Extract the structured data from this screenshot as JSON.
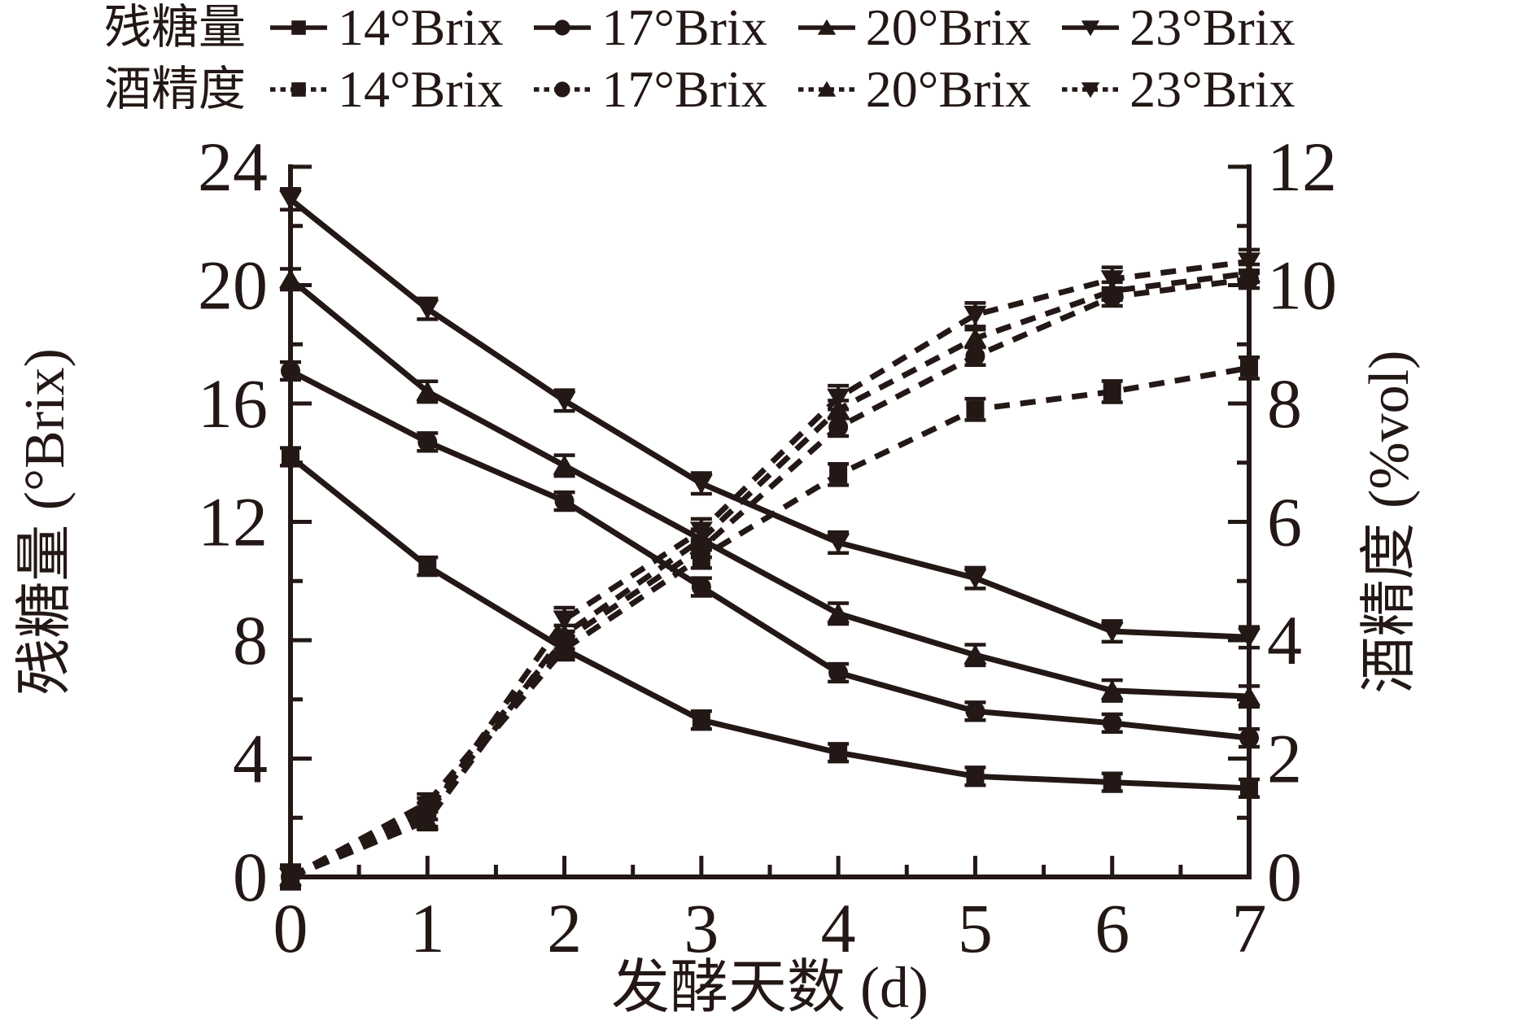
{
  "figure": {
    "background": "#ffffff",
    "ink_color": "#231815"
  },
  "legend": {
    "rows": [
      {
        "group_label": "残糖量",
        "line_style": "solid",
        "entries": [
          {
            "label": "14°Brix",
            "marker": "square"
          },
          {
            "label": "17°Brix",
            "marker": "circle"
          },
          {
            "label": "20°Brix",
            "marker": "triangle-up"
          },
          {
            "label": "23°Brix",
            "marker": "triangle-down"
          }
        ]
      },
      {
        "group_label": "酒精度",
        "line_style": "dashed",
        "entries": [
          {
            "label": "14°Brix",
            "marker": "square"
          },
          {
            "label": "17°Brix",
            "marker": "circle"
          },
          {
            "label": "20°Brix",
            "marker": "triangle-up"
          },
          {
            "label": "23°Brix",
            "marker": "triangle-down"
          }
        ]
      }
    ]
  },
  "chart_data": {
    "type": "line",
    "x": [
      0,
      1,
      2,
      3,
      4,
      5,
      6,
      7
    ],
    "xlabel": "发酵天数 (d)",
    "x_ticks": [
      0,
      1,
      2,
      3,
      4,
      5,
      6,
      7
    ],
    "x_minor_ticks": [
      0.5,
      1.5,
      2.5,
      3.5,
      4.5,
      5.5,
      6.5
    ],
    "left_axis": {
      "label": "残糖量 (°Brix)",
      "range": [
        0,
        24
      ],
      "major_ticks": [
        0,
        4,
        8,
        12,
        16,
        20,
        24
      ],
      "minor_ticks": [
        2,
        6,
        10,
        14,
        18,
        22
      ]
    },
    "right_axis": {
      "label": "酒精度 (%vol)",
      "range": [
        0,
        12
      ],
      "major_ticks": [
        0,
        2,
        4,
        6,
        8,
        10,
        12
      ],
      "minor_ticks": [
        1,
        3,
        5,
        7,
        9,
        11
      ]
    },
    "series": [
      {
        "name": "残糖量 14°Brix",
        "axis": "left",
        "style": "solid",
        "marker": "square",
        "values": [
          14.2,
          10.5,
          7.7,
          5.3,
          4.2,
          3.4,
          3.2,
          3.0
        ],
        "error": 0.3
      },
      {
        "name": "残糖量 17°Brix",
        "axis": "left",
        "style": "solid",
        "marker": "circle",
        "values": [
          17.1,
          14.7,
          12.7,
          9.8,
          6.9,
          5.6,
          5.2,
          4.7
        ],
        "error": 0.3
      },
      {
        "name": "残糖量 20°Brix",
        "axis": "left",
        "style": "solid",
        "marker": "triangle-up",
        "values": [
          20.2,
          16.4,
          13.9,
          11.4,
          8.9,
          7.5,
          6.3,
          6.1
        ],
        "error": 0.35
      },
      {
        "name": "残糖量 23°Brix",
        "axis": "left",
        "style": "solid",
        "marker": "triangle-down",
        "values": [
          22.9,
          19.2,
          16.1,
          13.3,
          11.3,
          10.1,
          8.3,
          8.1
        ],
        "error": 0.35
      },
      {
        "name": "酒精度 14°Brix",
        "axis": "right",
        "style": "dashed",
        "marker": "square",
        "values": [
          0,
          1.15,
          3.85,
          5.4,
          6.8,
          7.9,
          8.2,
          8.6
        ],
        "error": 0.18
      },
      {
        "name": "酒精度 17°Brix",
        "axis": "right",
        "style": "dashed",
        "marker": "circle",
        "values": [
          0,
          1.25,
          4.0,
          5.55,
          7.6,
          8.8,
          9.8,
          10.1
        ],
        "error": 0.15
      },
      {
        "name": "酒精度 20°Brix",
        "axis": "right",
        "style": "dashed",
        "marker": "triangle-up",
        "values": [
          0,
          0.95,
          4.1,
          5.7,
          7.9,
          9.1,
          9.9,
          10.2
        ],
        "error": 0.15
      },
      {
        "name": "酒精度 23°Brix",
        "axis": "right",
        "style": "dashed",
        "marker": "triangle-down",
        "values": [
          0,
          1.05,
          4.35,
          5.85,
          8.1,
          9.5,
          10.1,
          10.4
        ],
        "error": 0.2
      }
    ]
  }
}
